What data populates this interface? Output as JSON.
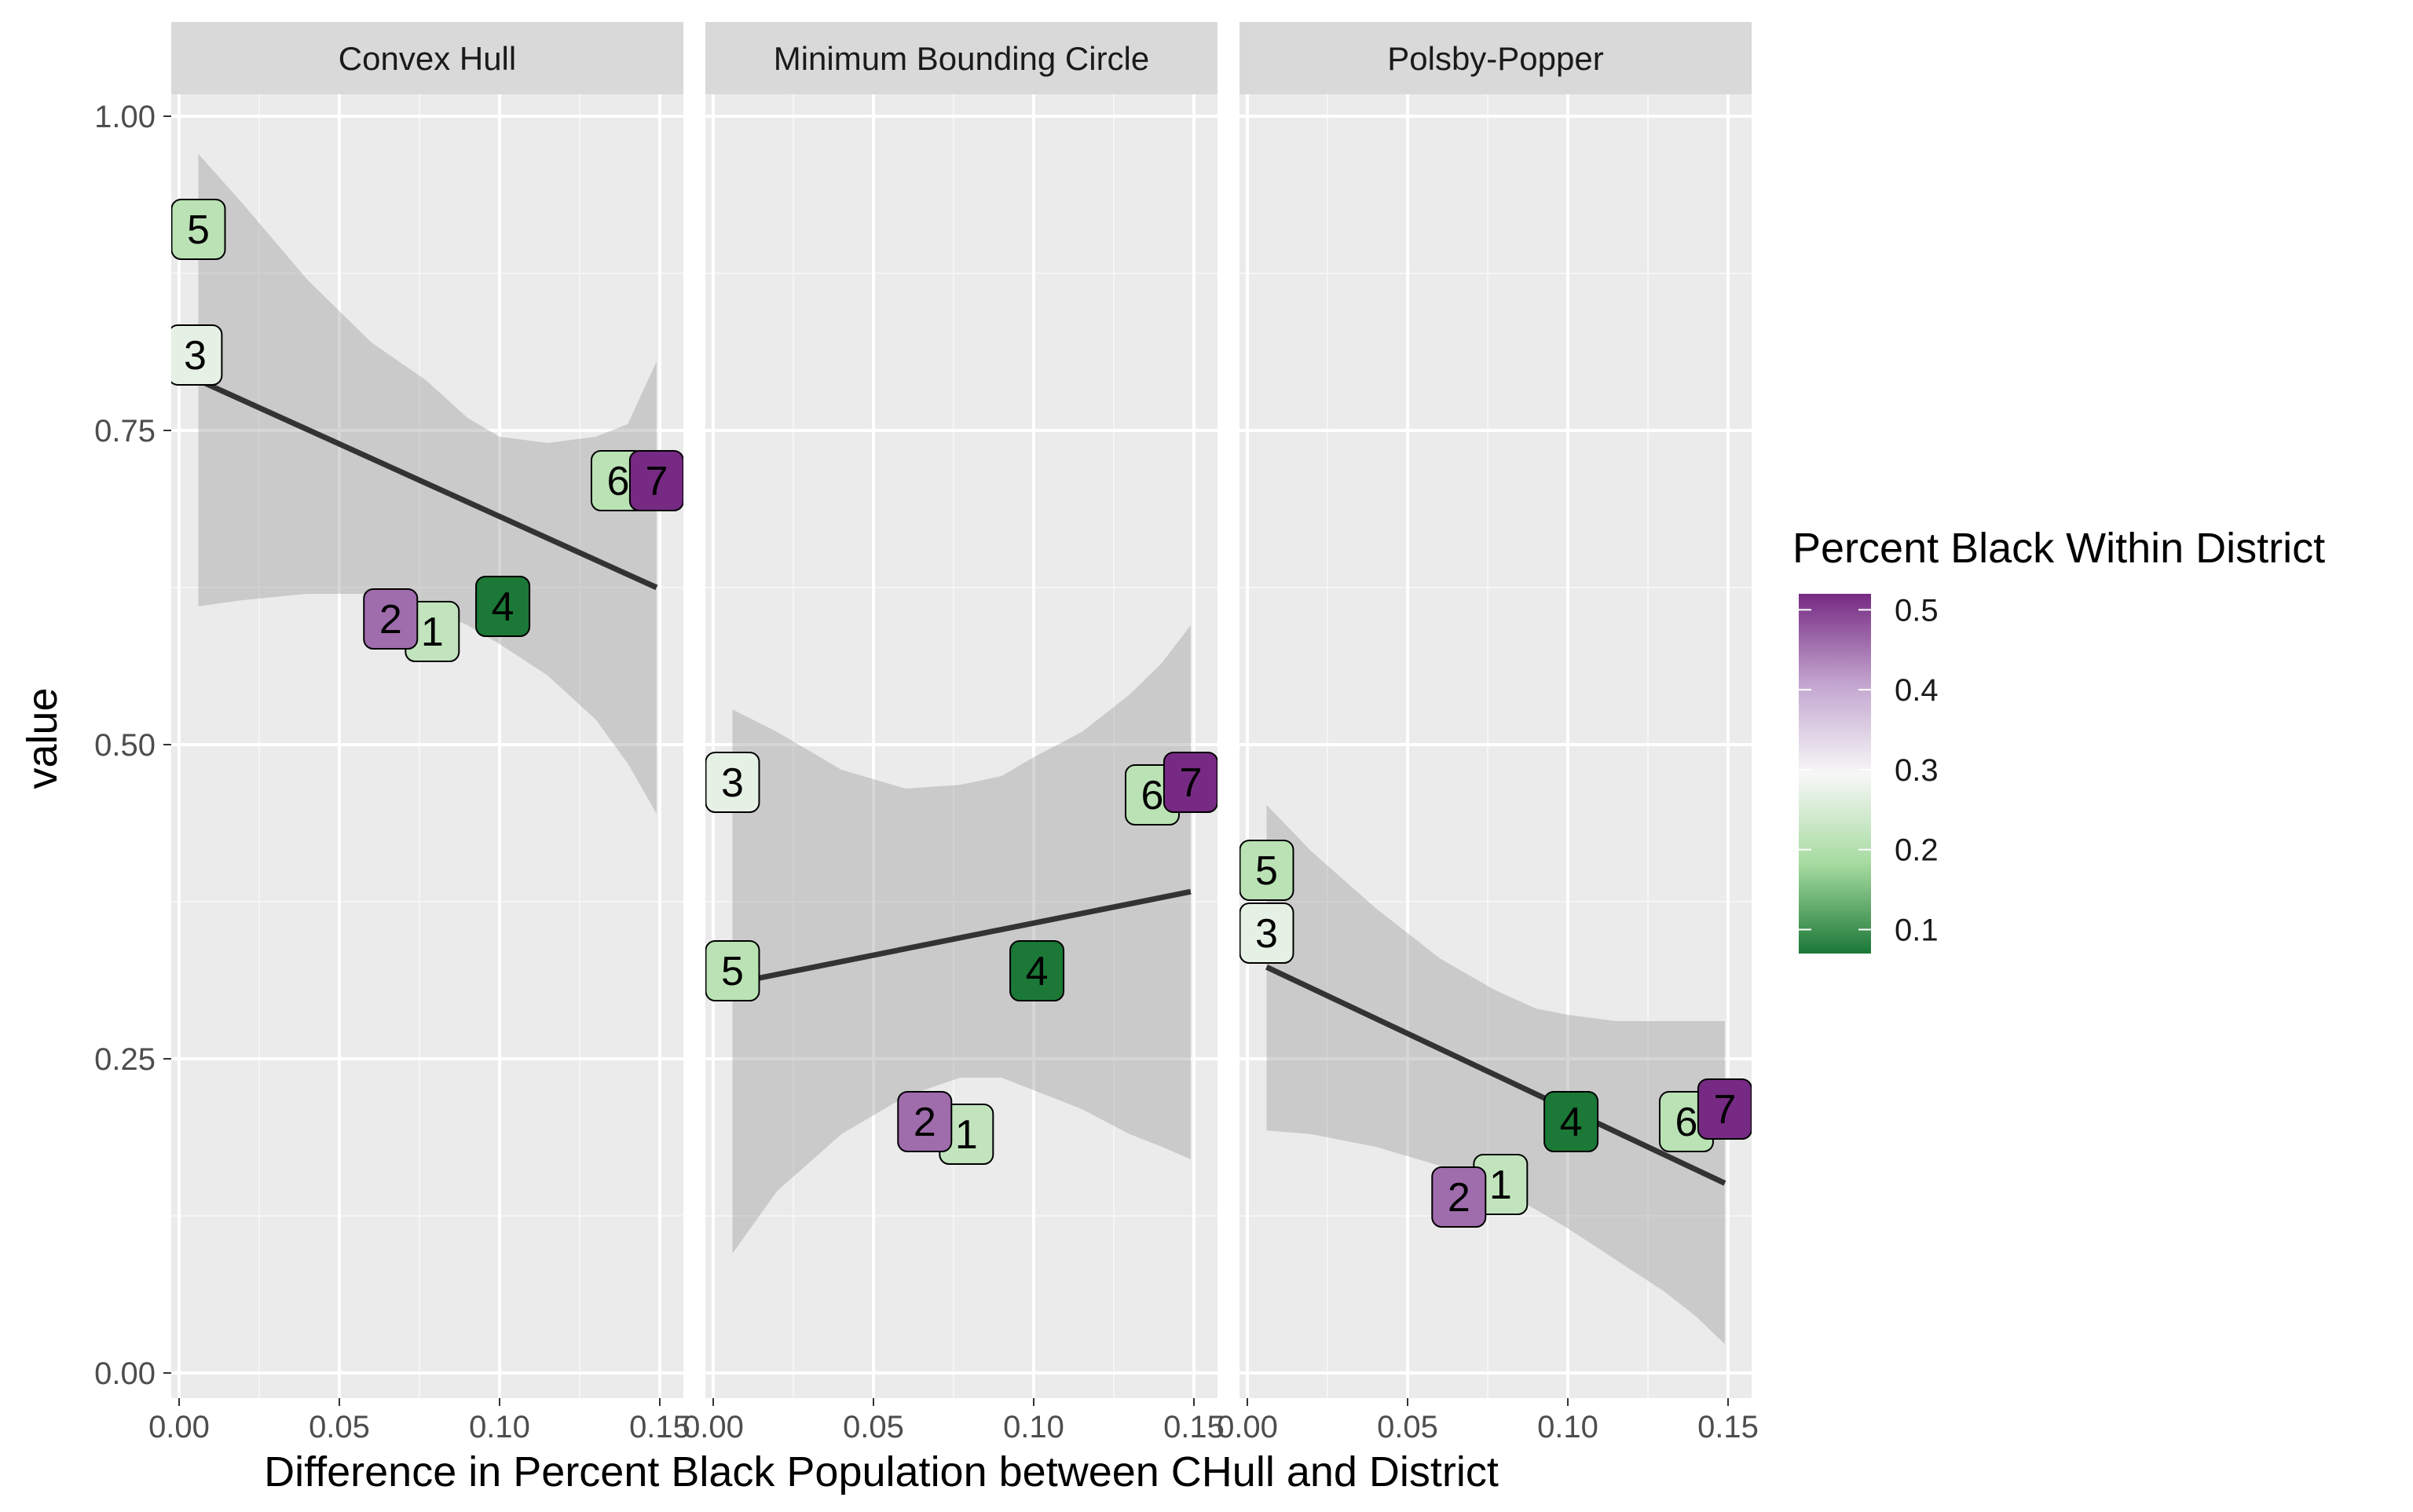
{
  "chart_data": {
    "type": "scatter",
    "xlabel": "Difference in Percent Black Population between CHull and District",
    "ylabel": "value",
    "xlim": [
      0.0,
      0.15
    ],
    "ylim": [
      0.0,
      1.0
    ],
    "x_ticks": [
      0.0,
      0.05,
      0.1,
      0.15
    ],
    "x_tick_labels": [
      "0.00",
      "0.05",
      "0.10",
      "0.15"
    ],
    "y_ticks": [
      0.0,
      0.25,
      0.5,
      0.75,
      1.0
    ],
    "y_tick_labels": [
      "0.00",
      "0.25",
      "0.50",
      "0.75",
      "1.00"
    ],
    "grid": true,
    "legend": {
      "title": "Percent Black Within District",
      "placement": "right",
      "scale": "PRGn diverging",
      "colors": [
        "#1b7837",
        "#a6dba0",
        "#f7f7f7",
        "#c2a5cf",
        "#762a83"
      ],
      "range": [
        0.07,
        0.52
      ],
      "ticks": [
        0.1,
        0.2,
        0.3,
        0.4,
        0.5
      ],
      "tick_labels": [
        "0.1",
        "0.2",
        "0.3",
        "0.4",
        "0.5"
      ]
    },
    "panels": [
      {
        "title": "Convex Hull",
        "points": [
          {
            "label": "1",
            "x": 0.079,
            "y": 0.59,
            "pct_black": 0.22
          },
          {
            "label": "2",
            "x": 0.066,
            "y": 0.6,
            "pct_black": 0.46
          },
          {
            "label": "3",
            "x": 0.005,
            "y": 0.81,
            "pct_black": 0.27
          },
          {
            "label": "4",
            "x": 0.101,
            "y": 0.61,
            "pct_black": 0.07
          },
          {
            "label": "5",
            "x": 0.006,
            "y": 0.91,
            "pct_black": 0.21
          },
          {
            "label": "6",
            "x": 0.137,
            "y": 0.71,
            "pct_black": 0.21
          },
          {
            "label": "7",
            "x": 0.149,
            "y": 0.71,
            "pct_black": 0.52
          }
        ],
        "fit": {
          "x": [
            0.006,
            0.149
          ],
          "y": [
            0.79,
            0.625
          ]
        },
        "ci_lower": [
          [
            0.006,
            0.61
          ],
          [
            0.02,
            0.615
          ],
          [
            0.04,
            0.62
          ],
          [
            0.06,
            0.62
          ],
          [
            0.077,
            0.61
          ],
          [
            0.09,
            0.595
          ],
          [
            0.1,
            0.58
          ],
          [
            0.115,
            0.555
          ],
          [
            0.13,
            0.52
          ],
          [
            0.14,
            0.485
          ],
          [
            0.149,
            0.445
          ]
        ],
        "ci_upper": [
          [
            0.006,
            0.97
          ],
          [
            0.02,
            0.93
          ],
          [
            0.04,
            0.87
          ],
          [
            0.06,
            0.82
          ],
          [
            0.077,
            0.79
          ],
          [
            0.09,
            0.76
          ],
          [
            0.1,
            0.745
          ],
          [
            0.115,
            0.74
          ],
          [
            0.13,
            0.745
          ],
          [
            0.14,
            0.755
          ],
          [
            0.149,
            0.805
          ]
        ]
      },
      {
        "title": "Minimum Bounding Circle",
        "points": [
          {
            "label": "1",
            "x": 0.079,
            "y": 0.19,
            "pct_black": 0.22
          },
          {
            "label": "2",
            "x": 0.066,
            "y": 0.2,
            "pct_black": 0.46
          },
          {
            "label": "3",
            "x": 0.006,
            "y": 0.47,
            "pct_black": 0.27
          },
          {
            "label": "4",
            "x": 0.101,
            "y": 0.32,
            "pct_black": 0.07
          },
          {
            "label": "5",
            "x": 0.006,
            "y": 0.32,
            "pct_black": 0.21
          },
          {
            "label": "6",
            "x": 0.137,
            "y": 0.46,
            "pct_black": 0.21
          },
          {
            "label": "7",
            "x": 0.149,
            "y": 0.47,
            "pct_black": 0.52
          }
        ],
        "fit": {
          "x": [
            0.006,
            0.149
          ],
          "y": [
            0.31,
            0.383
          ]
        },
        "ci_lower": [
          [
            0.006,
            0.095
          ],
          [
            0.02,
            0.145
          ],
          [
            0.04,
            0.19
          ],
          [
            0.06,
            0.22
          ],
          [
            0.077,
            0.235
          ],
          [
            0.09,
            0.235
          ],
          [
            0.1,
            0.225
          ],
          [
            0.115,
            0.21
          ],
          [
            0.13,
            0.19
          ],
          [
            0.14,
            0.18
          ],
          [
            0.149,
            0.17
          ]
        ],
        "ci_upper": [
          [
            0.006,
            0.528
          ],
          [
            0.02,
            0.51
          ],
          [
            0.04,
            0.48
          ],
          [
            0.06,
            0.465
          ],
          [
            0.077,
            0.468
          ],
          [
            0.09,
            0.475
          ],
          [
            0.1,
            0.49
          ],
          [
            0.115,
            0.51
          ],
          [
            0.13,
            0.54
          ],
          [
            0.14,
            0.565
          ],
          [
            0.149,
            0.595
          ]
        ]
      },
      {
        "title": "Polsby-Popper",
        "points": [
          {
            "label": "1",
            "x": 0.079,
            "y": 0.15,
            "pct_black": 0.22
          },
          {
            "label": "2",
            "x": 0.066,
            "y": 0.14,
            "pct_black": 0.46
          },
          {
            "label": "3",
            "x": 0.006,
            "y": 0.35,
            "pct_black": 0.27
          },
          {
            "label": "4",
            "x": 0.101,
            "y": 0.2,
            "pct_black": 0.07
          },
          {
            "label": "5",
            "x": 0.006,
            "y": 0.4,
            "pct_black": 0.21
          },
          {
            "label": "6",
            "x": 0.137,
            "y": 0.2,
            "pct_black": 0.21
          },
          {
            "label": "7",
            "x": 0.149,
            "y": 0.21,
            "pct_black": 0.52
          }
        ],
        "fit": {
          "x": [
            0.006,
            0.149
          ],
          "y": [
            0.323,
            0.151
          ]
        },
        "ci_lower": [
          [
            0.006,
            0.193
          ],
          [
            0.02,
            0.19
          ],
          [
            0.04,
            0.18
          ],
          [
            0.06,
            0.165
          ],
          [
            0.077,
            0.15
          ],
          [
            0.09,
            0.13
          ],
          [
            0.1,
            0.115
          ],
          [
            0.115,
            0.09
          ],
          [
            0.13,
            0.065
          ],
          [
            0.14,
            0.045
          ],
          [
            0.149,
            0.023
          ]
        ],
        "ci_upper": [
          [
            0.006,
            0.452
          ],
          [
            0.02,
            0.415
          ],
          [
            0.04,
            0.37
          ],
          [
            0.06,
            0.33
          ],
          [
            0.077,
            0.305
          ],
          [
            0.09,
            0.29
          ],
          [
            0.1,
            0.285
          ],
          [
            0.115,
            0.28
          ],
          [
            0.13,
            0.28
          ],
          [
            0.14,
            0.28
          ],
          [
            0.149,
            0.28
          ]
        ]
      }
    ]
  }
}
